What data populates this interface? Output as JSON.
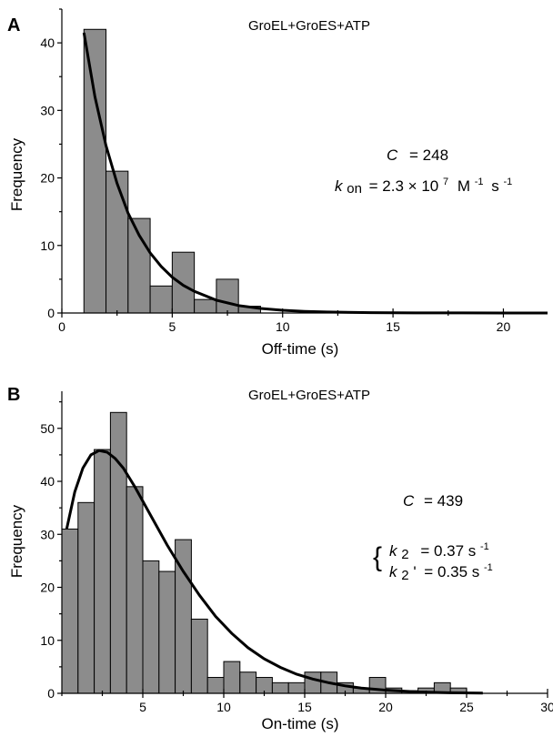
{
  "chart_data": [
    {
      "type": "bar",
      "panel_label": "A",
      "title": "GroEL+GroES+ATP",
      "xlabel": "Off-time (s)",
      "ylabel": "Frequency",
      "xlim": [
        0,
        22
      ],
      "ylim": [
        0,
        45
      ],
      "x_ticks": [
        0,
        5,
        10,
        15,
        20
      ],
      "y_ticks": [
        0,
        10,
        20,
        30,
        40
      ],
      "bin_width": 1,
      "bins": [
        {
          "x0": 1,
          "value": 42
        },
        {
          "x0": 2,
          "value": 21
        },
        {
          "x0": 3,
          "value": 14
        },
        {
          "x0": 4,
          "value": 4
        },
        {
          "x0": 5,
          "value": 9
        },
        {
          "x0": 6,
          "value": 2
        },
        {
          "x0": 7,
          "value": 5
        },
        {
          "x0": 8,
          "value": 1
        }
      ],
      "fit_curve": {
        "x": [
          1,
          1.5,
          2,
          2.5,
          3,
          3.5,
          4,
          4.5,
          5,
          5.5,
          6,
          7,
          8,
          9,
          10,
          11,
          12,
          14,
          16,
          18,
          20,
          22
        ],
        "y": [
          41.5,
          32.0,
          24.8,
          19.2,
          14.8,
          11.5,
          8.9,
          6.9,
          5.3,
          4.1,
          3.2,
          1.9,
          1.1,
          0.68,
          0.4,
          0.24,
          0.15,
          0.05,
          0.02,
          0.01,
          0,
          0
        ]
      },
      "annotations": {
        "c_label": "C",
        "c_value": "= 248",
        "k_symbol": "k",
        "k_subscript": "on",
        "k_value": "= 2.3 × 10",
        "k_exp": "7",
        "k_unit1": "M",
        "k_unit1_exp": "-1",
        "k_unit2": "s",
        "k_unit2_exp": "-1"
      }
    },
    {
      "type": "bar",
      "panel_label": "B",
      "title": "GroEL+GroES+ATP",
      "xlabel": "On-time (s)",
      "ylabel": "Frequency",
      "xlim": [
        0,
        30
      ],
      "ylim": [
        0,
        57
      ],
      "x_ticks": [
        5,
        10,
        15,
        20,
        25,
        30
      ],
      "x_tick_labels": [
        "5",
        "10",
        "15",
        "20",
        "25",
        "30"
      ],
      "y_ticks": [
        0,
        10,
        20,
        30,
        40,
        50
      ],
      "bin_width": 1,
      "bins": [
        {
          "x0": 0,
          "value": 31
        },
        {
          "x0": 1,
          "value": 36
        },
        {
          "x0": 2,
          "value": 46
        },
        {
          "x0": 3,
          "value": 53
        },
        {
          "x0": 4,
          "value": 39
        },
        {
          "x0": 5,
          "value": 25
        },
        {
          "x0": 6,
          "value": 23
        },
        {
          "x0": 7,
          "value": 29
        },
        {
          "x0": 8,
          "value": 14
        },
        {
          "x0": 9,
          "value": 3
        },
        {
          "x0": 10,
          "value": 6
        },
        {
          "x0": 11,
          "value": 4
        },
        {
          "x0": 12,
          "value": 3
        },
        {
          "x0": 13,
          "value": 2
        },
        {
          "x0": 14,
          "value": 2
        },
        {
          "x0": 15,
          "value": 4
        },
        {
          "x0": 16,
          "value": 4
        },
        {
          "x0": 17,
          "value": 2
        },
        {
          "x0": 18,
          "value": 1
        },
        {
          "x0": 19,
          "value": 3
        },
        {
          "x0": 20,
          "value": 1
        },
        {
          "x0": 21,
          "value": 0.5
        },
        {
          "x0": 22,
          "value": 1
        },
        {
          "x0": 23,
          "value": 2
        },
        {
          "x0": 24,
          "value": 1
        }
      ],
      "fit_curve": {
        "x": [
          0.3,
          0.8,
          1.3,
          1.8,
          2.3,
          2.8,
          3.3,
          3.8,
          4.5,
          5.5,
          6.5,
          7.5,
          8.5,
          9.5,
          10.5,
          11.5,
          12.5,
          13.5,
          14.5,
          15.5,
          16.5,
          17.5,
          18.5,
          20,
          22,
          24,
          26
        ],
        "y": [
          31,
          38,
          42.5,
          45,
          45.8,
          45.5,
          44.3,
          42.5,
          39,
          33.5,
          28,
          23,
          18.5,
          14.5,
          11.3,
          8.6,
          6.5,
          4.9,
          3.6,
          2.7,
          2.0,
          1.4,
          1.0,
          0.6,
          0.25,
          0.1,
          0.04
        ]
      },
      "annotations": {
        "c_label": "C",
        "c_value": "= 439",
        "brace": "{",
        "k2_symbol": "k",
        "k2_subscript": "2",
        "k2_value": "= 0.37 s",
        "k2_exp": "-1",
        "k2p_symbol": "k",
        "k2p_subscript": "2",
        "k2p_prime": "'",
        "k2p_value": "= 0.35 s",
        "k2p_exp": "-1"
      }
    }
  ]
}
